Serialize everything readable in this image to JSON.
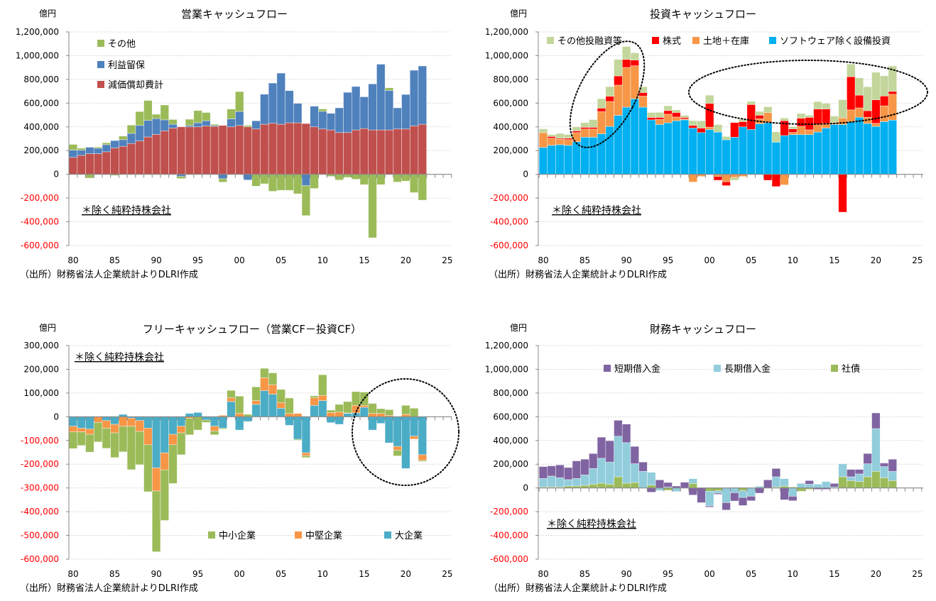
{
  "chart_data": [
    {
      "type": "bar",
      "stacked": true,
      "title": "営業キャッシュフロー",
      "unit": "億円",
      "note": "＊除く純粋持株会社",
      "source": "（出所）財務省法人企業統計よりDLRI作成",
      "ylim": [
        -600000,
        1200000
      ],
      "y_ticks": [
        "1,200,000",
        "1,000,000",
        "800,000",
        "600,000",
        "400,000",
        "200,000",
        "0",
        "-200,000",
        "-400,000",
        "-600,000"
      ],
      "x_ticks": [
        "80",
        "85",
        "90",
        "95",
        "00",
        "05",
        "10",
        "15",
        "20",
        "25"
      ],
      "x_range": [
        1980,
        2025
      ],
      "legend": "top-left",
      "grid": true,
      "categories": [
        1980,
        1981,
        1982,
        1983,
        1984,
        1985,
        1986,
        1987,
        1988,
        1989,
        1990,
        1991,
        1992,
        1993,
        1994,
        1995,
        1996,
        1997,
        1998,
        1999,
        2000,
        2001,
        2002,
        2003,
        2004,
        2005,
        2006,
        2007,
        2008,
        2009,
        2010,
        2011,
        2012,
        2013,
        2014,
        2015,
        2016,
        2017,
        2018,
        2019,
        2020,
        2021,
        2022
      ],
      "series": [
        {
          "name": "その他",
          "color": "#9BBB59",
          "values": [
            48000,
            16000,
            -32000,
            10000,
            16000,
            -10000,
            30000,
            70000,
            117000,
            168000,
            36000,
            125000,
            40000,
            -18000,
            52000,
            103000,
            69000,
            10000,
            -28000,
            83000,
            168000,
            12000,
            -100000,
            -80000,
            -143000,
            -135000,
            -135000,
            -164000,
            -253000,
            -119000,
            20000,
            -18000,
            -48000,
            -26000,
            -42000,
            -87000,
            -535000,
            -87000,
            22000,
            -65000,
            -57000,
            -154000,
            -218000
          ]
        },
        {
          "name": "利益留保",
          "color": "#4F81BD",
          "values": [
            61000,
            44000,
            54000,
            46000,
            60000,
            62000,
            56000,
            85000,
            131000,
            139000,
            133000,
            93000,
            32000,
            -18000,
            12000,
            34000,
            44000,
            8000,
            -38000,
            67000,
            117000,
            -48000,
            69000,
            253000,
            339000,
            431000,
            271000,
            164000,
            -95000,
            174000,
            149000,
            140000,
            208000,
            339000,
            366000,
            267000,
            388000,
            554000,
            333000,
            178000,
            291000,
            469000,
            491000
          ]
        },
        {
          "name": "減価償却費計",
          "color": "#C0504D",
          "values": [
            143000,
            160000,
            174000,
            174000,
            190000,
            222000,
            236000,
            260000,
            281000,
            315000,
            337000,
            366000,
            390000,
            400000,
            400000,
            400000,
            408000,
            404000,
            412000,
            400000,
            412000,
            400000,
            382000,
            422000,
            430000,
            422000,
            434000,
            434000,
            428000,
            400000,
            382000,
            374000,
            352000,
            352000,
            374000,
            386000,
            374000,
            374000,
            374000,
            382000,
            382000,
            408000,
            422000
          ]
        }
      ]
    },
    {
      "type": "bar",
      "stacked": true,
      "title": "投資キャッシュフロー",
      "unit": "億円",
      "note": "＊除く純粋持株会社",
      "source": "（出所）財務省法人企業統計よりDLRI作成",
      "ylim": [
        -600000,
        1200000
      ],
      "y_ticks": [
        "1,200,000",
        "1,000,000",
        "800,000",
        "600,000",
        "400,000",
        "200,000",
        "0",
        "-200,000",
        "-400,000",
        "-600,000"
      ],
      "x_ticks": [
        "80",
        "85",
        "90",
        "95",
        "00",
        "05",
        "10",
        "15",
        "20",
        "25"
      ],
      "x_range": [
        1980,
        2025
      ],
      "legend": "top",
      "grid": true,
      "categories": [
        1980,
        1981,
        1982,
        1983,
        1984,
        1985,
        1986,
        1987,
        1988,
        1989,
        1990,
        1991,
        1992,
        1993,
        1994,
        1995,
        1996,
        1997,
        1998,
        1999,
        2000,
        2001,
        2002,
        2003,
        2004,
        2005,
        2006,
        2007,
        2008,
        2009,
        2010,
        2011,
        2012,
        2013,
        2014,
        2015,
        2016,
        2017,
        2018,
        2019,
        2020,
        2021,
        2022
      ],
      "series": [
        {
          "name": "その他投融資等",
          "color": "#C3D69B",
          "values": [
            32000,
            16000,
            40000,
            32000,
            34000,
            40000,
            65000,
            79000,
            81000,
            139000,
            109000,
            61000,
            50000,
            42000,
            42000,
            40000,
            22000,
            18000,
            40000,
            61000,
            69000,
            63000,
            28000,
            -24000,
            18000,
            26000,
            32000,
            48000,
            87000,
            22000,
            18000,
            40000,
            18000,
            63000,
            48000,
            55000,
            154000,
            107000,
            146000,
            202000,
            232000,
            170000,
            214000
          ]
        },
        {
          "name": "株式",
          "color": "#FF0000",
          "values": [
            0,
            14000,
            8000,
            12000,
            14000,
            14000,
            14000,
            30000,
            44000,
            77000,
            67000,
            48000,
            30000,
            20000,
            18000,
            30000,
            38000,
            12000,
            22000,
            38000,
            200000,
            -32000,
            -32000,
            123000,
            44000,
            210000,
            30000,
            -50000,
            -103000,
            125000,
            30000,
            69000,
            105000,
            131000,
            121000,
            0,
            -319000,
            279000,
            107000,
            55000,
            198000,
            83000,
            24000
          ]
        },
        {
          "name": "土地＋在庫",
          "color": "#F79646",
          "values": [
            125000,
            61000,
            46000,
            48000,
            77000,
            69000,
            69000,
            186000,
            210000,
            255000,
            335000,
            279000,
            93000,
            0,
            42000,
            73000,
            32000,
            8000,
            -65000,
            -18000,
            20000,
            -18000,
            -63000,
            -26000,
            -18000,
            0,
            42000,
            87000,
            0,
            -89000,
            18000,
            69000,
            40000,
            63000,
            40000,
            16000,
            55000,
            99000,
            79000,
            53000,
            26000,
            133000,
            218000
          ]
        },
        {
          "name": "ソフトウェア除く設備投資",
          "color": "#00B0F0",
          "values": [
            226000,
            244000,
            250000,
            244000,
            275000,
            313000,
            313000,
            342000,
            404000,
            497000,
            566000,
            636000,
            566000,
            459000,
            420000,
            434000,
            451000,
            459000,
            390000,
            352000,
            378000,
            356000,
            291000,
            313000,
            400000,
            378000,
            426000,
            434000,
            271000,
            327000,
            335000,
            335000,
            335000,
            356000,
            390000,
            420000,
            420000,
            444000,
            481000,
            428000,
            404000,
            444000,
            457000
          ]
        }
      ]
    },
    {
      "type": "bar",
      "stacked": true,
      "title": "フリーキャッシュフロー（営業CF－投資CF）",
      "unit": "億円",
      "note": "＊除く純粋持株会社",
      "source": "（出所）財務省法人企業統計よりDLRI作成",
      "ylim": [
        -600000,
        300000
      ],
      "y_ticks": [
        "300,000",
        "200,000",
        "100,000",
        "0",
        "-100,000",
        "-200,000",
        "-300,000",
        "-400,000",
        "-500,000",
        "-600,000"
      ],
      "x_ticks": [
        "80",
        "85",
        "90",
        "95",
        "00",
        "05",
        "10",
        "15",
        "20",
        "25"
      ],
      "x_range": [
        1980,
        2025
      ],
      "legend": "bottom",
      "grid": true,
      "categories": [
        1980,
        1981,
        1982,
        1983,
        1984,
        1985,
        1986,
        1987,
        1988,
        1989,
        1990,
        1991,
        1992,
        1993,
        1994,
        1995,
        1996,
        1997,
        1998,
        1999,
        2000,
        2001,
        2002,
        2003,
        2004,
        2005,
        2006,
        2007,
        2008,
        2009,
        2010,
        2011,
        2012,
        2013,
        2014,
        2015,
        2016,
        2017,
        2018,
        2019,
        2020,
        2021,
        2022
      ],
      "series": [
        {
          "name": "中小企業",
          "color": "#9BBB59",
          "values": [
            -70000,
            -57000,
            -75000,
            -82000,
            -85000,
            -104000,
            -108000,
            -183000,
            -140000,
            -198000,
            -256000,
            -213000,
            -163000,
            -92000,
            -70000,
            -56000,
            -10000,
            -16000,
            -4000,
            31000,
            73000,
            10000,
            58000,
            40000,
            50000,
            55000,
            65000,
            -4000,
            -8000,
            8000,
            87000,
            10000,
            32000,
            48000,
            58000,
            56000,
            42000,
            20000,
            24000,
            -24000,
            38000,
            36000,
            -4000
          ]
        },
        {
          "name": "中堅企業",
          "color": "#F79646",
          "values": [
            -24000,
            -16000,
            -22000,
            -24000,
            -32000,
            -36000,
            -40000,
            -34000,
            -46000,
            -70000,
            -98000,
            -72000,
            -44000,
            -28000,
            -6000,
            0,
            0,
            -20000,
            6000,
            16000,
            14000,
            0,
            16000,
            54000,
            40000,
            24000,
            14000,
            14000,
            -12000,
            32000,
            22000,
            18000,
            20000,
            2000,
            32000,
            8000,
            14000,
            14000,
            6000,
            -16000,
            10000,
            -12000,
            -24000
          ]
        },
        {
          "name": "大企業",
          "color": "#4BACC6",
          "values": [
            -40000,
            -48000,
            -52000,
            0,
            -16000,
            -32000,
            10000,
            -6000,
            -16000,
            -48000,
            -215000,
            -152000,
            -74000,
            -40000,
            14000,
            18000,
            -14000,
            -40000,
            -48000,
            64000,
            -56000,
            -20000,
            52000,
            110000,
            95000,
            36000,
            -36000,
            -95000,
            -152000,
            48000,
            68000,
            -25000,
            -32000,
            14000,
            16000,
            40000,
            -56000,
            -28000,
            -110000,
            -125000,
            -218000,
            -82000,
            -160000
          ]
        }
      ]
    },
    {
      "type": "bar",
      "stacked": true,
      "title": "財務キャッシュフロー",
      "unit": "億円",
      "note": "＊除く純粋持株会社",
      "source": "（出所）財務省法人企業統計よりDLRI作成",
      "ylim": [
        -600000,
        1200000
      ],
      "y_ticks": [
        "1,200,000",
        "1,000,000",
        "800,000",
        "600,000",
        "400,000",
        "200,000",
        "0",
        "-200,000",
        "-400,000",
        "-600,000"
      ],
      "x_ticks": [
        "80",
        "85",
        "90",
        "95",
        "00",
        "05",
        "10",
        "15",
        "20",
        "25"
      ],
      "x_range": [
        1980,
        2025
      ],
      "legend": "top",
      "grid": true,
      "categories": [
        1980,
        1981,
        1982,
        1983,
        1984,
        1985,
        1986,
        1987,
        1988,
        1989,
        1990,
        1991,
        1992,
        1993,
        1994,
        1995,
        1996,
        1997,
        1998,
        1999,
        2000,
        2001,
        2002,
        2003,
        2004,
        2005,
        2006,
        2007,
        2008,
        2009,
        2010,
        2011,
        2012,
        2013,
        2014,
        2015,
        2016,
        2017,
        2018,
        2019,
        2020,
        2021,
        2022
      ],
      "series": [
        {
          "name": "短期借入金",
          "color": "#8064A2",
          "values": [
            100000,
            86000,
            108000,
            102000,
            148000,
            132000,
            126000,
            178000,
            180000,
            134000,
            156000,
            146000,
            78000,
            -36000,
            68000,
            38000,
            16000,
            48000,
            -60000,
            -124000,
            -10000,
            -10000,
            -62000,
            -70000,
            -68000,
            -38000,
            -44000,
            68000,
            70000,
            -100000,
            -38000,
            4000,
            30000,
            -12000,
            -12000,
            30000,
            0,
            62000,
            38000,
            86000,
            132000,
            30000,
            102000
          ]
        },
        {
          "name": "長期借入金",
          "color": "#92CDDC",
          "values": [
            72000,
            92000,
            78000,
            54000,
            64000,
            88000,
            132000,
            210000,
            186000,
            342000,
            342000,
            158000,
            140000,
            108000,
            -22000,
            8000,
            -30000,
            0,
            40000,
            0,
            -124000,
            -20000,
            -124000,
            -40000,
            -56000,
            -70000,
            14000,
            0,
            86000,
            62000,
            -70000,
            36000,
            32000,
            32000,
            54000,
            8000,
            110000,
            32000,
            64000,
            110000,
            360000,
            94000,
            78000
          ]
        },
        {
          "name": "社債",
          "color": "#9BBB59",
          "values": [
            8000,
            8000,
            8000,
            16000,
            16000,
            22000,
            32000,
            40000,
            32000,
            94000,
            40000,
            46000,
            0,
            24000,
            0,
            -20000,
            0,
            0,
            38000,
            0,
            -28000,
            -24000,
            0,
            6000,
            -24000,
            0,
            0,
            0,
            8000,
            16000,
            8000,
            -28000,
            -12000,
            0,
            0,
            0,
            94000,
            62000,
            54000,
            94000,
            140000,
            86000,
            62000
          ]
        }
      ]
    }
  ]
}
